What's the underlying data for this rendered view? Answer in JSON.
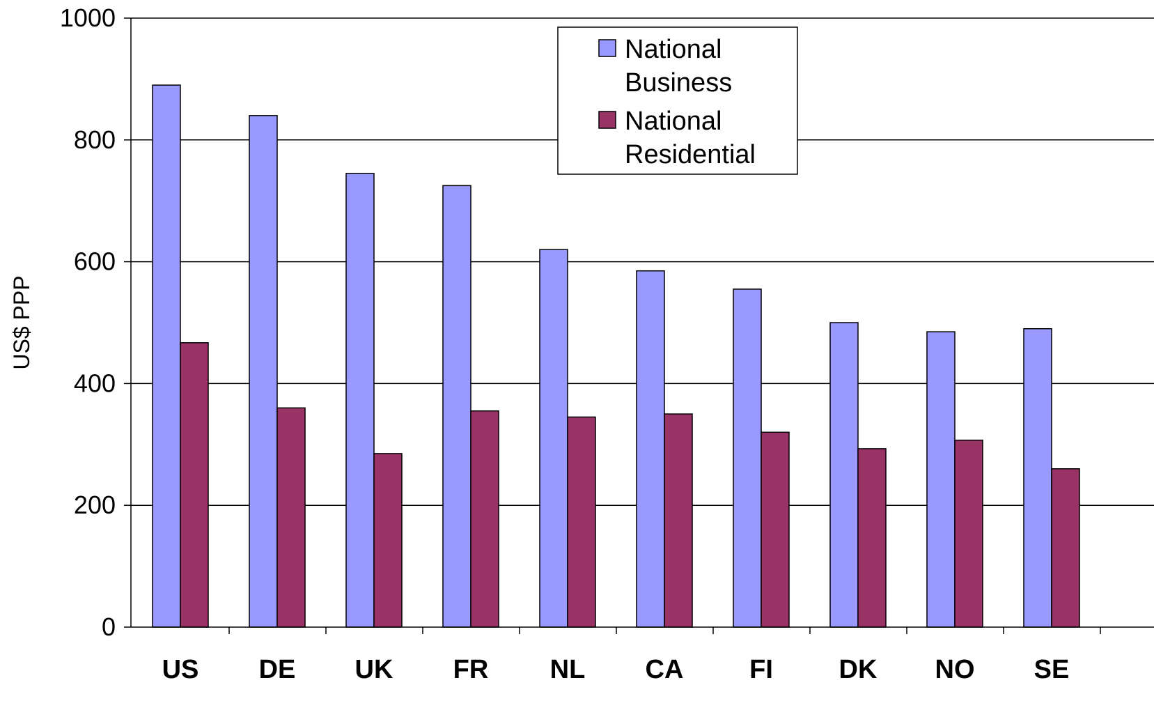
{
  "chart_data": {
    "type": "bar",
    "ylabel": "US$ PPP",
    "ylim": [
      0,
      1000
    ],
    "yticks": [
      0,
      200,
      400,
      600,
      800,
      1000
    ],
    "grid": true,
    "legend_position": "top-center",
    "categories": [
      "US",
      "DE",
      "UK",
      "FR",
      "NL",
      "CA",
      "FI",
      "DK",
      "NO",
      "SE"
    ],
    "series": [
      {
        "name": "National Business",
        "legend_lines": [
          "National",
          "Business"
        ],
        "color": "#9999ff",
        "values": [
          890,
          840,
          745,
          725,
          620,
          585,
          555,
          500,
          485,
          490
        ]
      },
      {
        "name": "National Residential",
        "legend_lines": [
          "National",
          "Residential"
        ],
        "color": "#993366",
        "values": [
          467,
          360,
          285,
          355,
          345,
          350,
          320,
          293,
          307,
          260
        ]
      }
    ]
  }
}
